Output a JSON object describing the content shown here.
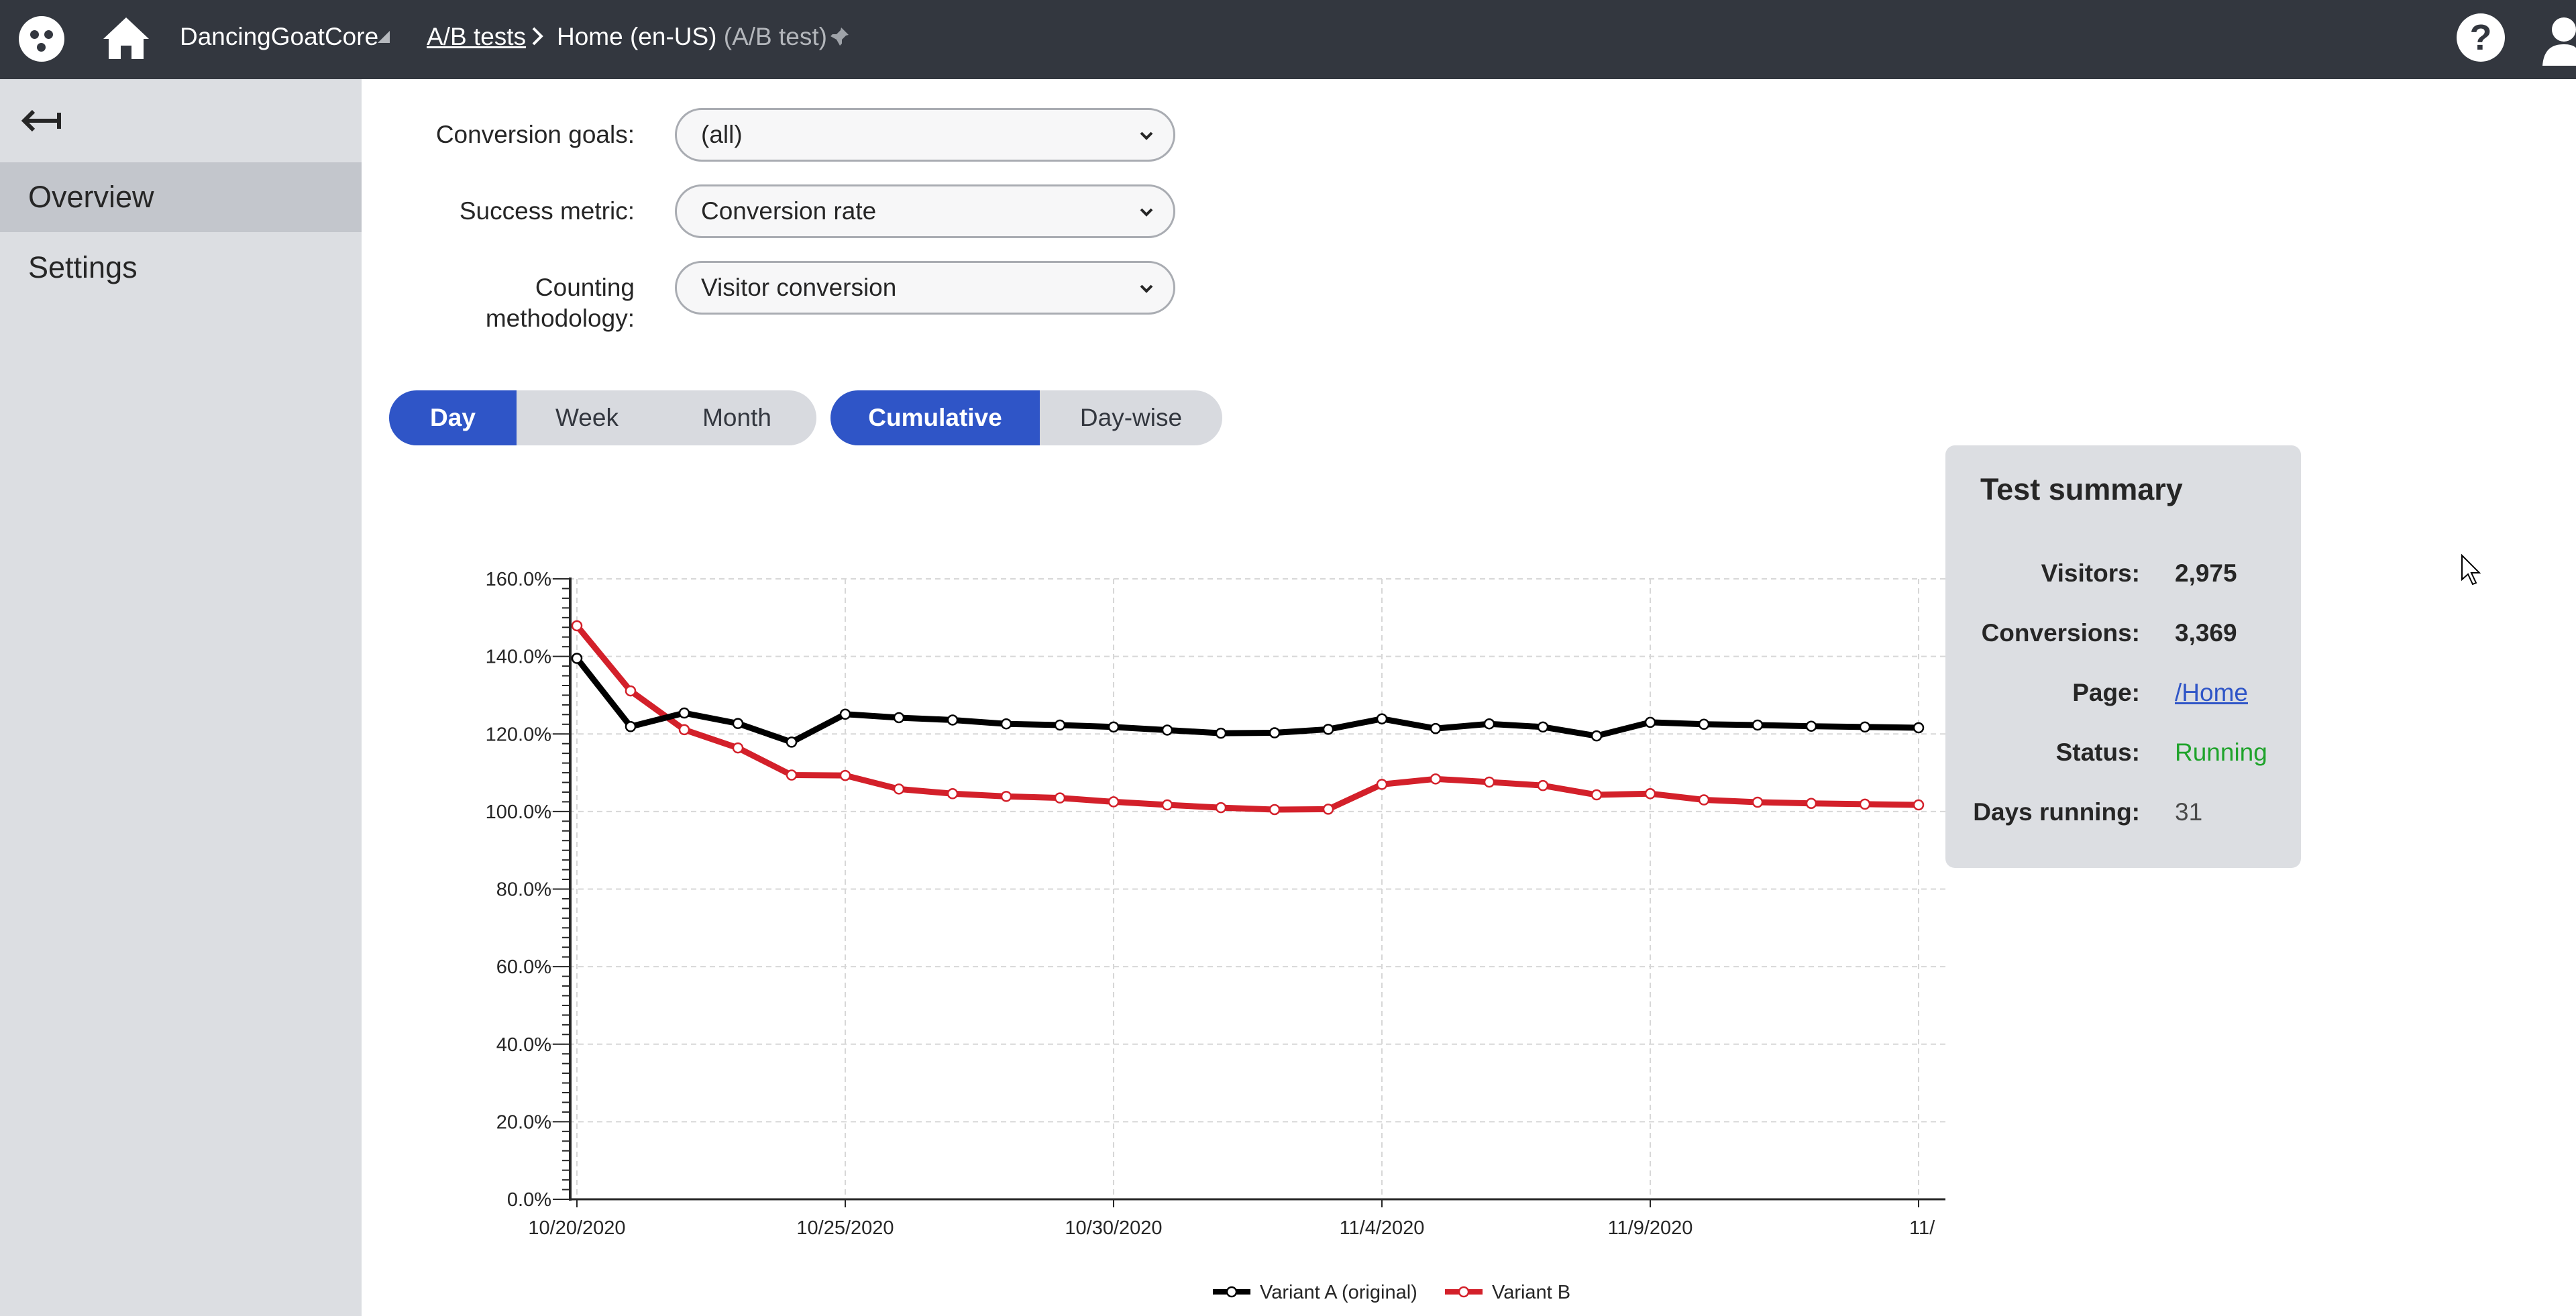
{
  "topbar": {
    "site_name": "DancingGoatCore",
    "breadcrumb_link": "A/B tests",
    "breadcrumb_page": "Home (en-US)",
    "breadcrumb_page_suffix": "(A/B test)",
    "help_label": "?"
  },
  "sidebar": {
    "items": [
      {
        "label": "Overview",
        "selected": true
      },
      {
        "label": "Settings",
        "selected": false
      }
    ]
  },
  "filters": {
    "conversion_goals": {
      "label": "Conversion goals:",
      "value": "(all)"
    },
    "success_metric": {
      "label": "Success metric:",
      "value": "Conversion rate"
    },
    "counting_methodology": {
      "label_line1": "Counting",
      "label_line2": "methodology:",
      "value": "Visitor conversion"
    }
  },
  "period_toggle": {
    "options": [
      "Day",
      "Week",
      "Month"
    ],
    "selected": "Day"
  },
  "mode_toggle": {
    "options": [
      "Cumulative",
      "Day-wise"
    ],
    "selected": "Cumulative"
  },
  "summary": {
    "title": "Test summary",
    "visitors_label": "Visitors:",
    "visitors": "2,975",
    "conversions_label": "Conversions:",
    "conversions": "3,369",
    "page_label": "Page:",
    "page": "/Home",
    "status_label": "Status:",
    "status": "Running",
    "days_label": "Days running:",
    "days": "31"
  },
  "colors": {
    "accent": "#2f55c7",
    "variant_a": "#000000",
    "variant_b": "#d3202a",
    "status_running": "#1fa32b"
  },
  "chart_data": {
    "type": "line",
    "title": "",
    "xlabel": "",
    "ylabel": "",
    "ylim": [
      0,
      160
    ],
    "yticks": [
      "0.0%",
      "20.0%",
      "40.0%",
      "60.0%",
      "80.0%",
      "100.0%",
      "120.0%",
      "140.0%",
      "160.0%"
    ],
    "xtick_labels": [
      "10/20/2020",
      "10/25/2020",
      "10/30/2020",
      "11/4/2020",
      "11/9/2020",
      "11/"
    ],
    "x": [
      "10/20/2020",
      "10/21/2020",
      "10/22/2020",
      "10/23/2020",
      "10/24/2020",
      "10/25/2020",
      "10/26/2020",
      "10/27/2020",
      "10/28/2020",
      "10/29/2020",
      "10/30/2020",
      "10/31/2020",
      "11/1/2020",
      "11/2/2020",
      "11/3/2020",
      "11/4/2020",
      "11/5/2020",
      "11/6/2020",
      "11/7/2020",
      "11/8/2020",
      "11/9/2020",
      "11/10/2020",
      "11/11/2020",
      "11/12/2020",
      "11/13/2020",
      "11/14/2020"
    ],
    "grid": true,
    "legend_position": "bottom-center",
    "series": [
      {
        "name": "Variant A (original)",
        "color": "#000000",
        "values": [
          139.5,
          121.9,
          125.4,
          122.7,
          117.9,
          125.1,
          124.2,
          123.6,
          122.6,
          122.3,
          121.8,
          121.0,
          120.2,
          120.3,
          121.2,
          123.9,
          121.4,
          122.6,
          121.8,
          119.5,
          123.0,
          122.5,
          122.3,
          122.0,
          121.8,
          121.6
        ]
      },
      {
        "name": "Variant B",
        "color": "#d3202a",
        "values": [
          147.9,
          131.1,
          121.1,
          116.4,
          109.4,
          109.3,
          105.8,
          104.6,
          103.9,
          103.5,
          102.5,
          101.7,
          101.0,
          100.5,
          100.6,
          107.0,
          108.4,
          107.6,
          106.7,
          104.3,
          104.6,
          103.0,
          102.4,
          102.1,
          101.9,
          101.7
        ]
      }
    ]
  }
}
